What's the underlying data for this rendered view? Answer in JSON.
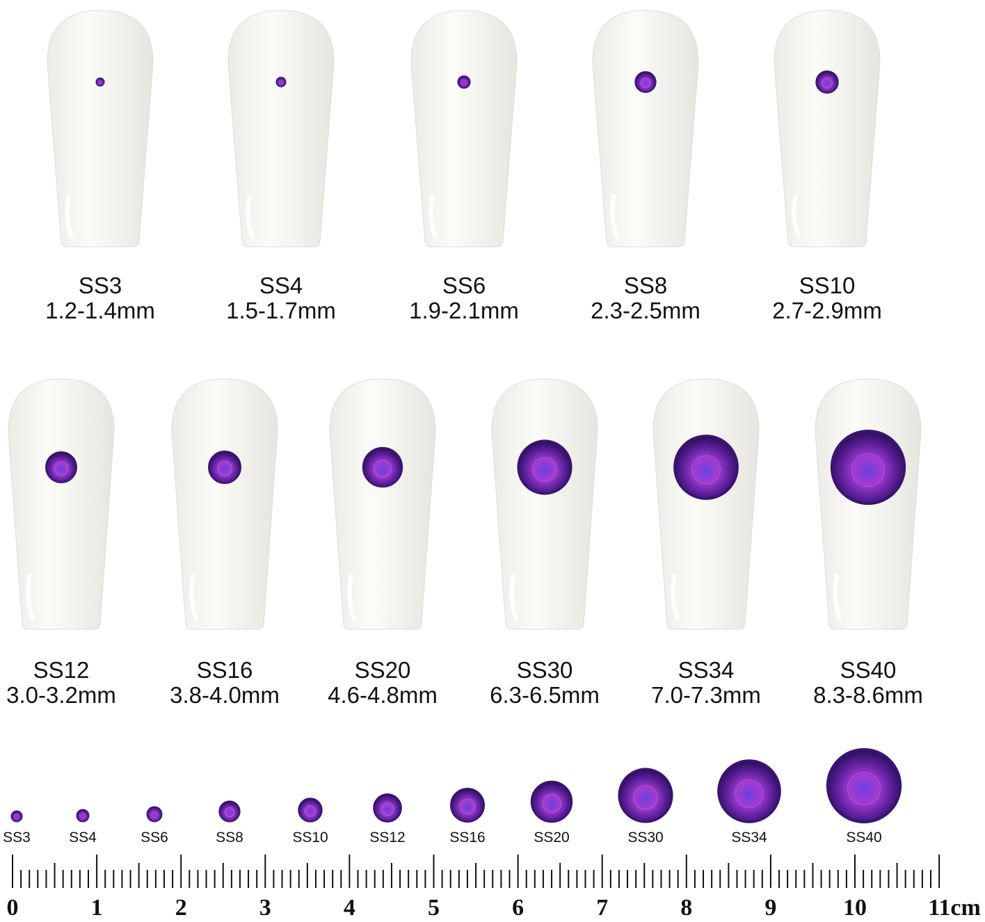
{
  "nails_row1": [
    {
      "size": "SS3",
      "range": "1.2-1.4mm"
    },
    {
      "size": "SS4",
      "range": "1.5-1.7mm"
    },
    {
      "size": "SS6",
      "range": "1.9-2.1mm"
    },
    {
      "size": "SS8",
      "range": "2.3-2.5mm"
    },
    {
      "size": "SS10",
      "range": "2.7-2.9mm"
    }
  ],
  "nails_row2": [
    {
      "size": "SS12",
      "range": "3.0-3.2mm"
    },
    {
      "size": "SS16",
      "range": "3.8-4.0mm"
    },
    {
      "size": "SS20",
      "range": "4.6-4.8mm"
    },
    {
      "size": "SS30",
      "range": "6.3-6.5mm"
    },
    {
      "size": "SS34",
      "range": "7.0-7.3mm"
    },
    {
      "size": "SS40",
      "range": "8.3-8.6mm"
    }
  ],
  "gems": [
    "SS3",
    "SS4",
    "SS6",
    "SS8",
    "SS10",
    "SS12",
    "SS16",
    "SS20",
    "SS30",
    "SS34",
    "SS40"
  ],
  "ruler": {
    "labels": [
      "0",
      "1",
      "2",
      "3",
      "4",
      "5",
      "6",
      "7",
      "8",
      "9",
      "10",
      "11cm"
    ]
  }
}
